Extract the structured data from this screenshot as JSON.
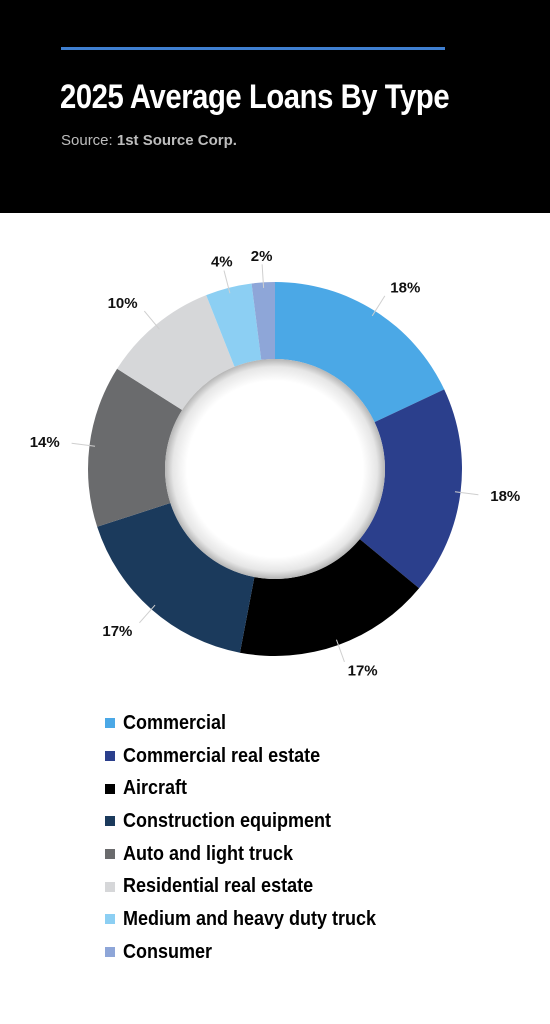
{
  "header": {
    "title": "2025 Average Loans By Type",
    "source_label": "Source:",
    "source_name": "1st Source Corp."
  },
  "colors": {
    "header_bg": "#000000",
    "accent_rule": "#3f7fd0"
  },
  "chart_data": {
    "type": "pie",
    "variant": "donut",
    "title": "2025 Average Loans By Type",
    "legend_placement": "bottom",
    "series": [
      {
        "categories": [
          "Commercial",
          "Commercial real estate",
          "Aircraft",
          "Construction equipment",
          "Auto and light truck",
          "Residential real estate",
          "Medium and heavy duty truck",
          "Consumer"
        ],
        "values": [
          18,
          18,
          17,
          17,
          14,
          10,
          4,
          2
        ],
        "labels": [
          "18%",
          "18%",
          "17%",
          "17%",
          "14%",
          "10%",
          "4%",
          "2%"
        ],
        "colors": [
          "#4ba8e6",
          "#2b3f8c",
          "#000000",
          "#1b3a5c",
          "#6a6b6d",
          "#d6d7d9",
          "#8ccff3",
          "#8ea6d8"
        ]
      }
    ]
  }
}
